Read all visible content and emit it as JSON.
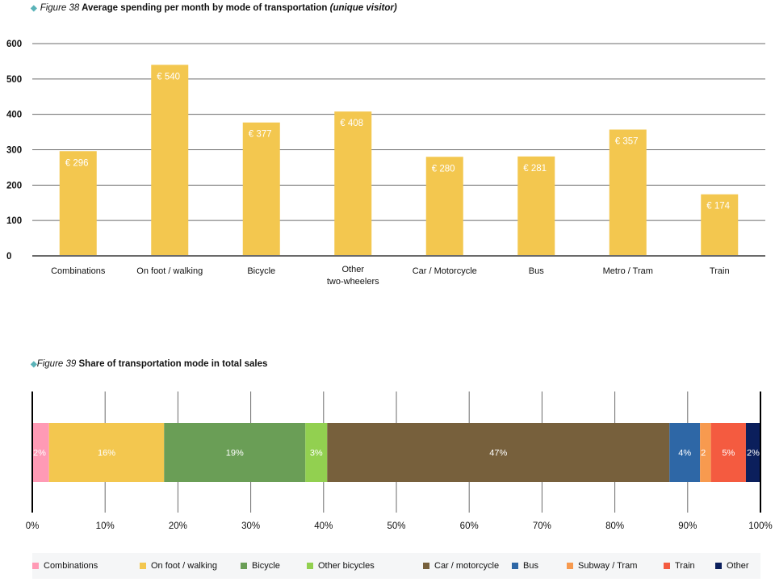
{
  "chart_data": [
    {
      "type": "bar",
      "figure_number": "Figure 38",
      "title": "Average spending per month by mode of transportation",
      "title_suffix": "(unique visitor)",
      "xlabel": "",
      "ylabel": "",
      "ylim": [
        0,
        600
      ],
      "yticks": [
        "0",
        "100",
        "200",
        "300",
        "400",
        "500",
        "600"
      ],
      "ytick_values": [
        0,
        100,
        200,
        300,
        400,
        500,
        600
      ],
      "grid": true,
      "bar_color": "#f3c74f",
      "label_color": "#ffffff",
      "categories": [
        [
          "Combinations"
        ],
        [
          "On foot / walking"
        ],
        [
          "Bicycle"
        ],
        [
          "Other",
          "two-wheelers"
        ],
        [
          "Car / Motorcycle"
        ],
        [
          "Bus"
        ],
        [
          "Metro / Tram"
        ],
        [
          "Train"
        ]
      ],
      "values": [
        296,
        540,
        377,
        408,
        280,
        281,
        357,
        174
      ],
      "data_labels": [
        "€ 296",
        "€ 540",
        "€ 377",
        "€ 408",
        "€ 280",
        "€ 281",
        "€ 357",
        "€ 174"
      ]
    },
    {
      "type": "bar",
      "orientation": "horizontal-stacked",
      "figure_number": "Figure 39",
      "title": "Share of transportation mode in total sales",
      "xlim": [
        0,
        100
      ],
      "xticks": [
        "0%",
        "10%",
        "20%",
        "30%",
        "40%",
        "50%",
        "60%",
        "70%",
        "80%",
        "90%",
        "100%"
      ],
      "xtick_values": [
        0,
        10,
        20,
        30,
        40,
        50,
        60,
        70,
        80,
        90,
        100
      ],
      "grid": true,
      "legend_position": "bottom",
      "series": [
        {
          "name": "Combinations",
          "value": 2.3,
          "label": "2%",
          "color": "#ff9ab5"
        },
        {
          "name": "On foot / walking",
          "value": 15.8,
          "label": "16%",
          "color": "#f3c74f"
        },
        {
          "name": "Bicycle",
          "value": 19.4,
          "label": "19%",
          "color": "#6a9e56"
        },
        {
          "name": "Other bicycles",
          "value": 3.0,
          "label": "3%",
          "color": "#92d050"
        },
        {
          "name": "Car / motorcycle",
          "value": 47.0,
          "label": "47%",
          "color": "#77603c"
        },
        {
          "name": "Bus",
          "value": 4.2,
          "label": "4%",
          "color": "#2e67a6"
        },
        {
          "name": "Subway / Tram",
          "value": 1.5,
          "label": "2",
          "color": "#f79a4f"
        },
        {
          "name": "Train",
          "value": 4.8,
          "label": "5%",
          "color": "#f45b40"
        },
        {
          "name": "Other",
          "value": 2.0,
          "label": "2%",
          "color": "#0b1f5c"
        }
      ]
    }
  ],
  "header1": {
    "diamond": "◆",
    "number": "Figure 38",
    "title": "Average spending per month by mode of transportation",
    "suffix": "(unique visitor)"
  },
  "header2": {
    "diamond": "◆",
    "number": "Figure 39",
    "title": "Share of transportation mode in total sales"
  }
}
